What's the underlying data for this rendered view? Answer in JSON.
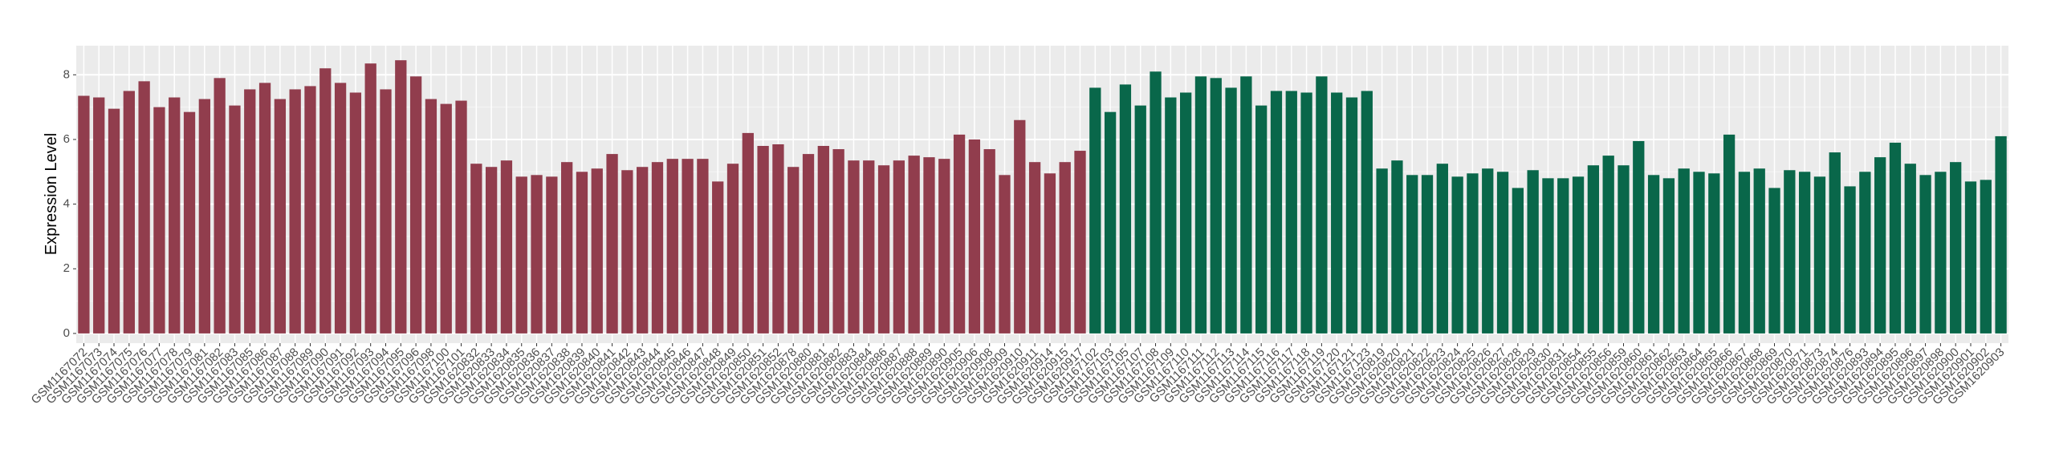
{
  "chart_data": {
    "type": "bar",
    "y_label": "Expression Level",
    "ylim": [
      -0.3,
      8.9
    ],
    "yticks": [
      0,
      2,
      4,
      6,
      8
    ],
    "minor_yticks": [
      1,
      3,
      5,
      7
    ],
    "grid": true,
    "groups": [
      {
        "color": "#913d4d",
        "categories": [
          "GSM1167072",
          "GSM1167073",
          "GSM1167074",
          "GSM1167075",
          "GSM1167076",
          "GSM1167077",
          "GSM1167078",
          "GSM1167079",
          "GSM1167081",
          "GSM1167082",
          "GSM1167083",
          "GSM1167085",
          "GSM1167086",
          "GSM1167087",
          "GSM1167088",
          "GSM1167089",
          "GSM1167090",
          "GSM1167091",
          "GSM1167092",
          "GSM1167093",
          "GSM1167094",
          "GSM1167095",
          "GSM1167096",
          "GSM1167098",
          "GSM1167100",
          "GSM1167101",
          "GSM1620832",
          "GSM1620833",
          "GSM1620834",
          "GSM1620835",
          "GSM1620836",
          "GSM1620837",
          "GSM1620838",
          "GSM1620839",
          "GSM1620840",
          "GSM1620841",
          "GSM1620842",
          "GSM1620843",
          "GSM1620844",
          "GSM1620845",
          "GSM1620846",
          "GSM1620847",
          "GSM1620848",
          "GSM1620849",
          "GSM1620850",
          "GSM1620851",
          "GSM1620852",
          "GSM1620878",
          "GSM1620880",
          "GSM1620881",
          "GSM1620882",
          "GSM1620883",
          "GSM1620884",
          "GSM1620886",
          "GSM1620887",
          "GSM1620888",
          "GSM1620889",
          "GSM1620890",
          "GSM1620905",
          "GSM1620906",
          "GSM1620908",
          "GSM1620909",
          "GSM1620910",
          "GSM1620911",
          "GSM1620914",
          "GSM1620915",
          "GSM1620917"
        ],
        "values": [
          7.35,
          7.3,
          6.95,
          7.5,
          7.8,
          7.0,
          7.3,
          6.85,
          7.25,
          7.9,
          7.05,
          7.55,
          7.75,
          7.25,
          7.55,
          7.65,
          8.2,
          7.75,
          7.45,
          8.35,
          7.55,
          8.45,
          7.95,
          7.25,
          7.1,
          7.2,
          5.25,
          5.15,
          5.35,
          4.85,
          4.9,
          4.85,
          5.3,
          5.0,
          5.1,
          5.55,
          5.05,
          5.15,
          5.3,
          5.4,
          5.4,
          5.4,
          4.7,
          5.25,
          6.2,
          5.8,
          5.85,
          5.15,
          5.55,
          5.8,
          5.7,
          5.35,
          5.35,
          5.2,
          5.35,
          5.5,
          5.45,
          5.4,
          6.15,
          6.0,
          5.7,
          4.9,
          6.6,
          5.3,
          4.95,
          5.3,
          5.65
        ]
      },
      {
        "color": "#09674a",
        "categories": [
          "GSM1167102",
          "GSM1167103",
          "GSM1167105",
          "GSM1167107",
          "GSM1167108",
          "GSM1167109",
          "GSM1167110",
          "GSM1167111",
          "GSM1167112",
          "GSM1167113",
          "GSM1167114",
          "GSM1167115",
          "GSM1167116",
          "GSM1167117",
          "GSM1167118",
          "GSM1167119",
          "GSM1167120",
          "GSM1167121",
          "GSM1167123",
          "GSM1620819",
          "GSM1620820",
          "GSM1620821",
          "GSM1620822",
          "GSM1620823",
          "GSM1620824",
          "GSM1620825",
          "GSM1620826",
          "GSM1620827",
          "GSM1620828",
          "GSM1620829",
          "GSM1620830",
          "GSM1620831",
          "GSM1620854",
          "GSM1620855",
          "GSM1620856",
          "GSM1620859",
          "GSM1620860",
          "GSM1620861",
          "GSM1620862",
          "GSM1620863",
          "GSM1620864",
          "GSM1620865",
          "GSM1620866",
          "GSM1620867",
          "GSM1620868",
          "GSM1620869",
          "GSM1620870",
          "GSM1620871",
          "GSM1620873",
          "GSM1620874",
          "GSM1620876",
          "GSM1620893",
          "GSM1620894",
          "GSM1620895",
          "GSM1620896",
          "GSM1620897",
          "GSM1620898",
          "GSM1620900",
          "GSM1620901",
          "GSM1620902",
          "GSM1620903"
        ],
        "values": [
          7.6,
          6.85,
          7.7,
          7.05,
          8.1,
          7.3,
          7.45,
          7.95,
          7.9,
          7.6,
          7.95,
          7.05,
          7.5,
          7.5,
          7.45,
          7.95,
          7.45,
          7.3,
          7.5,
          5.1,
          5.35,
          4.9,
          4.9,
          5.25,
          4.85,
          4.95,
          5.1,
          5.0,
          4.5,
          5.05,
          4.8,
          4.8,
          4.85,
          5.2,
          5.5,
          5.2,
          5.95,
          4.9,
          4.8,
          5.1,
          5.0,
          4.95,
          6.15,
          5.0,
          5.1,
          4.5,
          5.05,
          5.0,
          4.85,
          5.6,
          4.55,
          5.0,
          5.45,
          5.9,
          5.25,
          4.9,
          5.0,
          5.3,
          4.7,
          4.75,
          6.1
        ]
      }
    ]
  }
}
